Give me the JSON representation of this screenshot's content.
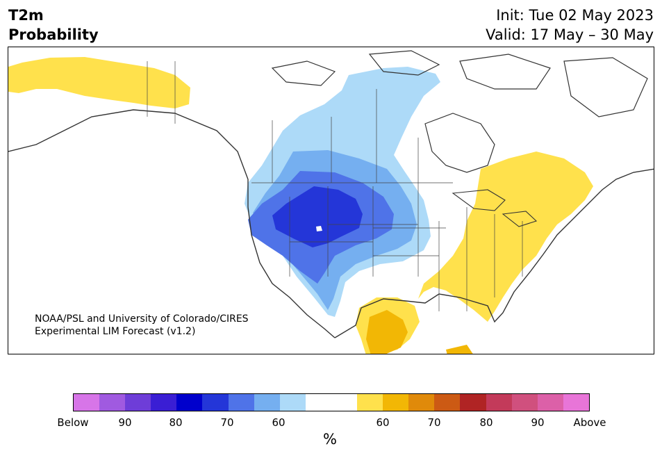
{
  "header": {
    "variable": "T2m",
    "subtitle": "Probability",
    "init": "Init: Tue 02 May 2023",
    "valid": "Valid: 17 May – 30 May"
  },
  "map": {
    "region": "North America",
    "credit_line1": "NOAA/PSL and University of Colorado/CIRES",
    "credit_line2": "Experimental LIM Forecast (v1.2)"
  },
  "colorbar": {
    "unit": "%",
    "colors": [
      "#d775e8",
      "#a05ae0",
      "#6e3dd8",
      "#3a1ed4",
      "#0000cc",
      "#2436d8",
      "#4f73e8",
      "#75aff0",
      "#addaf8",
      "#ffffff",
      "#ffffff",
      "#ffe14c",
      "#f2b705",
      "#e08a0a",
      "#cc5a14",
      "#b02424",
      "#c33a5a",
      "#d0507e",
      "#dc60a8",
      "#e875d8"
    ],
    "tick_labels": [
      "Below",
      "90",
      "80",
      "70",
      "60",
      "60",
      "70",
      "80",
      "90",
      "Above"
    ]
  }
}
